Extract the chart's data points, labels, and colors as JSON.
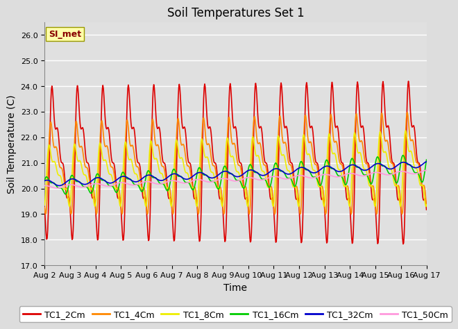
{
  "title": "Soil Temperatures Set 1",
  "xlabel": "Time",
  "ylabel": "Soil Temperature (C)",
  "ylim": [
    17.0,
    26.5
  ],
  "yticks": [
    17.0,
    18.0,
    19.0,
    20.0,
    21.0,
    22.0,
    23.0,
    24.0,
    25.0,
    26.0
  ],
  "xtick_labels": [
    "Aug 2",
    "Aug 3",
    "Aug 4",
    "Aug 5",
    "Aug 6",
    "Aug 7",
    "Aug 8",
    "Aug 9",
    "Aug 10",
    "Aug 11",
    "Aug 12",
    "Aug 13",
    "Aug 14",
    "Aug 15",
    "Aug 16",
    "Aug 17"
  ],
  "series_colors": {
    "TC1_2Cm": "#dd0000",
    "TC1_4Cm": "#ff8800",
    "TC1_8Cm": "#eeee00",
    "TC1_16Cm": "#00cc00",
    "TC1_32Cm": "#0000cc",
    "TC1_50Cm": "#ff99dd"
  },
  "legend_order": [
    "TC1_2Cm",
    "TC1_4Cm",
    "TC1_8Cm",
    "TC1_16Cm",
    "TC1_32Cm",
    "TC1_50Cm"
  ],
  "annotation_text": "SI_met",
  "annotation_color": "#880000",
  "annotation_bg": "#ffffaa",
  "fig_facecolor": "#dddddd",
  "plot_bg": "#e0e0e0",
  "grid_color": "#ffffff",
  "title_fontsize": 12,
  "axis_fontsize": 10,
  "tick_fontsize": 8,
  "legend_fontsize": 9,
  "lw": 1.2
}
